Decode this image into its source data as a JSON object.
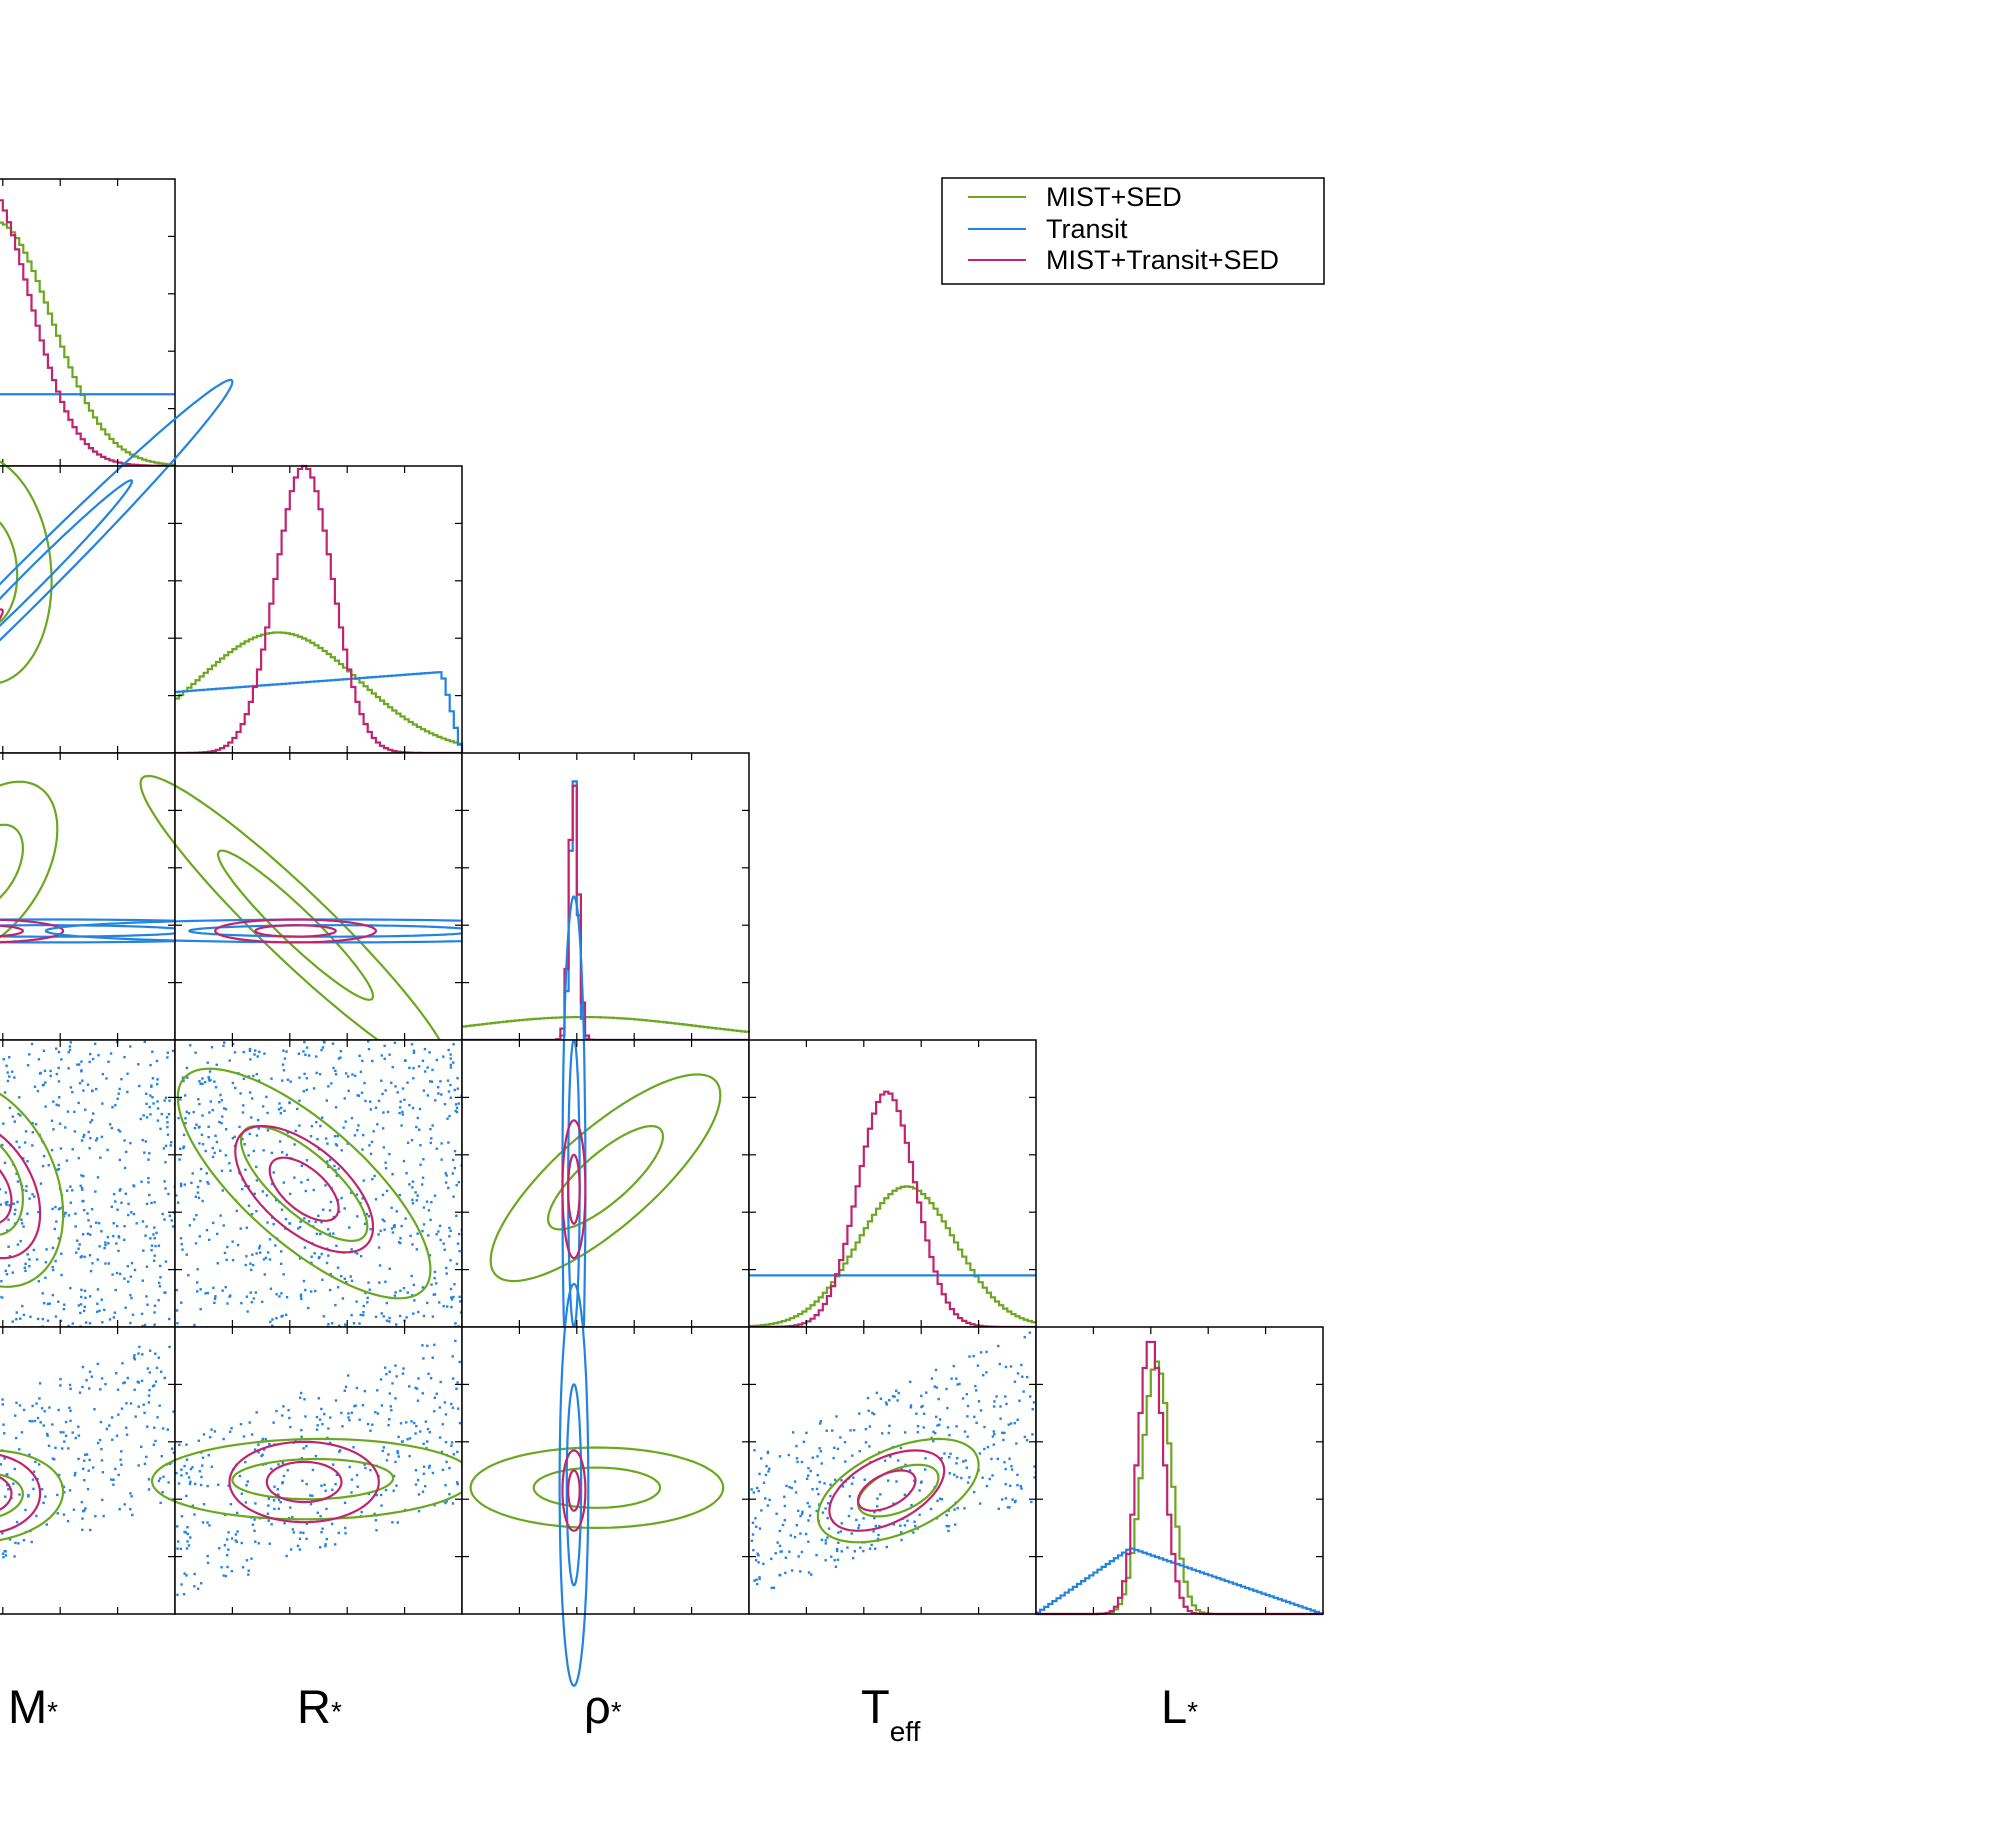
{
  "chart_data": {
    "type": "corner",
    "parameters": [
      {
        "key": "mass",
        "label": "M",
        "subscript": "*"
      },
      {
        "key": "radius",
        "label": "R",
        "subscript": "*"
      },
      {
        "key": "density",
        "label": "ρ",
        "subscript": "*"
      },
      {
        "key": "teff",
        "label": "T",
        "subscript": "eff"
      },
      {
        "key": "luminosity",
        "label": "L",
        "subscript": "*"
      }
    ],
    "legend_position": "top-right",
    "grid": false,
    "series": [
      {
        "name": "MIST+SED",
        "color": "#6aa820",
        "marginals": {
          "mass": {
            "center": 0.38,
            "width": 0.19,
            "peak": 0.85,
            "floor": 0.0
          },
          "radius": {
            "center": 0.36,
            "width": 0.28,
            "peak": 0.42,
            "floor": 0.0
          },
          "density": {
            "center": 0.42,
            "width": 0.4,
            "peak": 0.08,
            "floor": 0.0
          },
          "teff": {
            "center": 0.55,
            "width": 0.17,
            "peak": 0.49,
            "floor": 0.0
          },
          "luminosity": {
            "center": 0.42,
            "width": 0.05,
            "peak": 0.88,
            "floor": 0.0
          }
        },
        "contours": [
          {
            "x": "mass",
            "y": "radius",
            "cx": 0.33,
            "cy": 0.64,
            "sx": 0.12,
            "sy": 0.2,
            "rho": -0.1
          },
          {
            "x": "mass",
            "y": "density",
            "cx": 0.35,
            "cy": 0.6,
            "sx": 0.12,
            "sy": 0.15,
            "rho": 0.45
          },
          {
            "x": "radius",
            "y": "density",
            "cx": 0.42,
            "cy": 0.4,
            "sx": 0.27,
            "sy": 0.26,
            "rho": -0.95
          },
          {
            "x": "mass",
            "y": "teff",
            "cx": 0.33,
            "cy": 0.5,
            "sx": 0.14,
            "sy": 0.18,
            "rho": -0.3
          },
          {
            "x": "radius",
            "y": "teff",
            "cx": 0.45,
            "cy": 0.5,
            "sx": 0.22,
            "sy": 0.2,
            "rho": -0.75
          },
          {
            "x": "density",
            "y": "teff",
            "cx": 0.5,
            "cy": 0.52,
            "sx": 0.2,
            "sy": 0.18,
            "rho": 0.8
          },
          {
            "x": "mass",
            "y": "luminosity",
            "cx": 0.33,
            "cy": 0.41,
            "sx": 0.14,
            "sy": 0.08,
            "rho": 0.1
          },
          {
            "x": "radius",
            "y": "luminosity",
            "cx": 0.48,
            "cy": 0.47,
            "sx": 0.28,
            "sy": 0.07,
            "rho": 0.05
          },
          {
            "x": "density",
            "y": "luminosity",
            "cx": 0.47,
            "cy": 0.44,
            "sx": 0.22,
            "sy": 0.07,
            "rho": 0.0
          },
          {
            "x": "teff",
            "y": "luminosity",
            "cx": 0.52,
            "cy": 0.43,
            "sx": 0.14,
            "sy": 0.09,
            "rho": 0.5
          }
        ]
      },
      {
        "name": "Transit",
        "color": "#2283e0",
        "marginals": {
          "mass": {
            "shape": "flat",
            "level": 0.25
          },
          "radius": {
            "shape": "ramp",
            "level": 0.25
          },
          "density": {
            "center": 0.39,
            "width": 0.014,
            "peak": 0.92,
            "floor": 0.0
          },
          "teff": {
            "shape": "flat",
            "level": 0.18
          },
          "luminosity": {
            "shape": "tent",
            "peak_at": 0.33,
            "level": 0.23
          }
        },
        "contours": [
          {
            "x": "mass",
            "y": "radius",
            "cx": 0.5,
            "cy": 0.6,
            "sx": 0.35,
            "sy": 0.35,
            "rho": 0.99
          },
          {
            "x": "mass",
            "y": "density",
            "cx": 0.55,
            "cy": 0.38,
            "sx": 0.5,
            "sy": 0.02,
            "rho": 0.0
          },
          {
            "x": "radius",
            "y": "density",
            "cx": 0.55,
            "cy": 0.38,
            "sx": 0.5,
            "sy": 0.02,
            "rho": 0.0
          },
          {
            "x": "density",
            "y": "teff",
            "cx": 0.39,
            "cy": 0.5,
            "sx": 0.02,
            "sy": 0.5,
            "rho": 0.0
          },
          {
            "x": "density",
            "y": "luminosity",
            "cx": 0.39,
            "cy": 0.45,
            "sx": 0.025,
            "sy": 0.35,
            "rho": 0.0
          }
        ]
      },
      {
        "name": "MIST+Transit+SED",
        "color": "#c0246e",
        "marginals": {
          "mass": {
            "center": 0.33,
            "width": 0.16,
            "peak": 1.0,
            "floor": 0.0
          },
          "radius": {
            "center": 0.45,
            "width": 0.1,
            "peak": 1.0,
            "floor": 0.0
          },
          "density": {
            "center": 0.39,
            "width": 0.016,
            "peak": 0.9,
            "floor": 0.0
          },
          "teff": {
            "center": 0.48,
            "width": 0.1,
            "peak": 0.82,
            "floor": 0.0
          },
          "luminosity": {
            "center": 0.4,
            "width": 0.045,
            "peak": 0.96,
            "floor": 0.0
          }
        },
        "contours": [
          {
            "x": "mass",
            "y": "radius",
            "cx": 0.2,
            "cy": 0.3,
            "sx": 0.1,
            "sy": 0.1,
            "rho": 0.97
          },
          {
            "x": "mass",
            "y": "density",
            "cx": 0.33,
            "cy": 0.38,
            "sx": 0.14,
            "sy": 0.02,
            "rho": 0.0
          },
          {
            "x": "radius",
            "y": "density",
            "cx": 0.42,
            "cy": 0.38,
            "sx": 0.14,
            "sy": 0.02,
            "rho": 0.0
          },
          {
            "x": "mass",
            "y": "teff",
            "cx": 0.33,
            "cy": 0.48,
            "sx": 0.1,
            "sy": 0.12,
            "rho": -0.35
          },
          {
            "x": "radius",
            "y": "teff",
            "cx": 0.45,
            "cy": 0.48,
            "sx": 0.12,
            "sy": 0.11,
            "rho": -0.6
          },
          {
            "x": "density",
            "y": "teff",
            "cx": 0.39,
            "cy": 0.48,
            "sx": 0.02,
            "sy": 0.12,
            "rho": 0.0
          },
          {
            "x": "mass",
            "y": "luminosity",
            "cx": 0.33,
            "cy": 0.42,
            "sx": 0.1,
            "sy": 0.07,
            "rho": 0.0
          },
          {
            "x": "radius",
            "y": "luminosity",
            "cx": 0.45,
            "cy": 0.46,
            "sx": 0.13,
            "sy": 0.07,
            "rho": 0.0
          },
          {
            "x": "density",
            "y": "luminosity",
            "cx": 0.39,
            "cy": 0.43,
            "sx": 0.02,
            "sy": 0.07,
            "rho": 0.0
          },
          {
            "x": "teff",
            "y": "luminosity",
            "cx": 0.48,
            "cy": 0.43,
            "sx": 0.1,
            "sy": 0.07,
            "rho": 0.5
          }
        ]
      }
    ],
    "scatter": [
      {
        "series": "Transit",
        "x": "mass",
        "y": "teff",
        "region": "full"
      },
      {
        "series": "Transit",
        "x": "radius",
        "y": "teff",
        "region": "full"
      },
      {
        "series": "Transit",
        "x": "mass",
        "y": "luminosity",
        "region": "band"
      },
      {
        "series": "Transit",
        "x": "radius",
        "y": "luminosity",
        "region": "band"
      },
      {
        "series": "Transit",
        "x": "teff",
        "y": "luminosity",
        "region": "band"
      }
    ]
  }
}
